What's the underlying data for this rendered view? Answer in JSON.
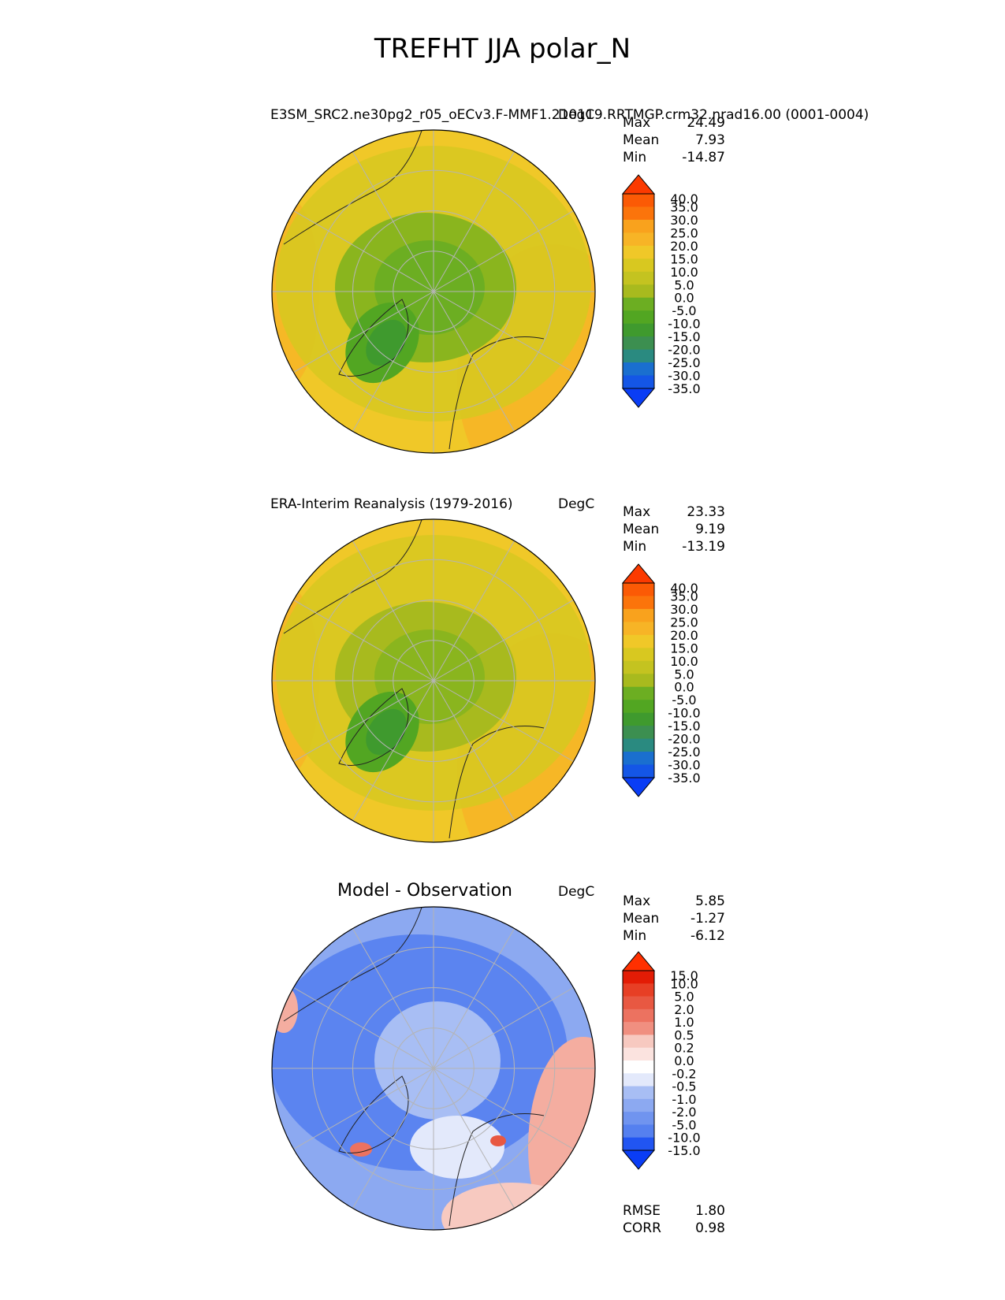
{
  "title": "TREFHT JJA polar_N",
  "colors": {
    "abs_levels": [
      "#0a3df5",
      "#1456e6",
      "#1a6fcf",
      "#1e7fb0",
      "#2a8a80",
      "#3c8f50",
      "#3f9a2e",
      "#52a622",
      "#6cae22",
      "#8ab51e",
      "#a8ba1e",
      "#c4c320",
      "#d8c820",
      "#f0c828",
      "#f7b426",
      "#f9a21d",
      "#fa8c12",
      "#fb740b",
      "#fb5a05",
      "#fb3a00"
    ],
    "diff_levels": [
      "#0a3df5",
      "#2155f2",
      "#3a6af0",
      "#5580ef",
      "#7094ef",
      "#8ca9f1",
      "#a8bef4",
      "#c7d4f8",
      "#e3e9fb",
      "#ffffff",
      "#fbe3df",
      "#f7c9c0",
      "#f4ada0",
      "#f08f80",
      "#ec7260",
      "#e85842",
      "#e73f25",
      "#e52a10",
      "#e31c05",
      "#ff3000"
    ],
    "map_edge": "#000000",
    "grid": "#b4b4b4"
  },
  "panels": [
    {
      "name": "test",
      "title": "E3SM_SRC2.ne30pg2_r05_oECv3.F-MMF1.210119.RRTMGP.crm32.nrad16.00 (0001-0004)",
      "units": "DegC",
      "stats": [
        {
          "label": "Max",
          "value": "24.49"
        },
        {
          "label": "Mean",
          "value": "7.93"
        },
        {
          "label": "Min",
          "value": "-14.87"
        }
      ],
      "colorbar_ticks": [
        "40.0",
        "35.0",
        "30.0",
        "25.0",
        "20.0",
        "15.0",
        "10.0",
        "5.0",
        "0.0",
        "-5.0",
        "-10.0",
        "-15.0",
        "-20.0",
        "-25.0",
        "-30.0",
        "-35.0"
      ]
    },
    {
      "name": "reference",
      "title": "ERA-Interim Reanalysis (1979-2016)",
      "units": "DegC",
      "stats": [
        {
          "label": "Max",
          "value": "23.33"
        },
        {
          "label": "Mean",
          "value": "9.19"
        },
        {
          "label": "Min",
          "value": "-13.19"
        }
      ],
      "colorbar_ticks": [
        "40.0",
        "35.0",
        "30.0",
        "25.0",
        "20.0",
        "15.0",
        "10.0",
        "5.0",
        "0.0",
        "-5.0",
        "-10.0",
        "-15.0",
        "-20.0",
        "-25.0",
        "-30.0",
        "-35.0"
      ]
    },
    {
      "name": "difference",
      "title": "Model - Observation",
      "units": "DegC",
      "stats": [
        {
          "label": "Max",
          "value": "5.85"
        },
        {
          "label": "Mean",
          "value": "-1.27"
        },
        {
          "label": "Min",
          "value": "-6.12"
        }
      ],
      "colorbar_ticks": [
        "15.0",
        "10.0",
        "5.0",
        "2.0",
        "1.0",
        "0.5",
        "0.2",
        "0.0",
        "-0.2",
        "-0.5",
        "-1.0",
        "-2.0",
        "-5.0",
        "-10.0",
        "-15.0"
      ],
      "metrics": [
        {
          "label": "RMSE",
          "value": "1.80"
        },
        {
          "label": "CORR",
          "value": "0.98"
        }
      ]
    }
  ],
  "chart_data": {
    "type": "heatmap",
    "title": "TREFHT JJA polar_N",
    "projection": "north polar stereographic",
    "variable": "TREFHT",
    "season": "JJA",
    "region": "polar_N",
    "units": "DegC",
    "panels": [
      {
        "name": "E3SM_SRC2.ne30pg2_r05_oECv3.F-MMF1.210119.RRTMGP.crm32.nrad16.00 (0001-0004)",
        "max": 24.49,
        "mean": 7.93,
        "min": -14.87,
        "levels": [
          -35,
          -30,
          -25,
          -20,
          -15,
          -10,
          -5,
          0,
          5,
          10,
          15,
          20,
          25,
          30,
          35,
          40
        ]
      },
      {
        "name": "ERA-Interim Reanalysis (1979-2016)",
        "max": 23.33,
        "mean": 9.19,
        "min": -13.19,
        "levels": [
          -35,
          -30,
          -25,
          -20,
          -15,
          -10,
          -5,
          0,
          5,
          10,
          15,
          20,
          25,
          30,
          35,
          40
        ]
      },
      {
        "name": "Model - Observation",
        "max": 5.85,
        "mean": -1.27,
        "min": -6.12,
        "levels": [
          -15,
          -10,
          -5,
          -2,
          -1,
          -0.5,
          -0.2,
          0,
          0.2,
          0.5,
          1,
          2,
          5,
          10,
          15
        ],
        "rmse": 1.8,
        "corr": 0.98
      }
    ]
  }
}
